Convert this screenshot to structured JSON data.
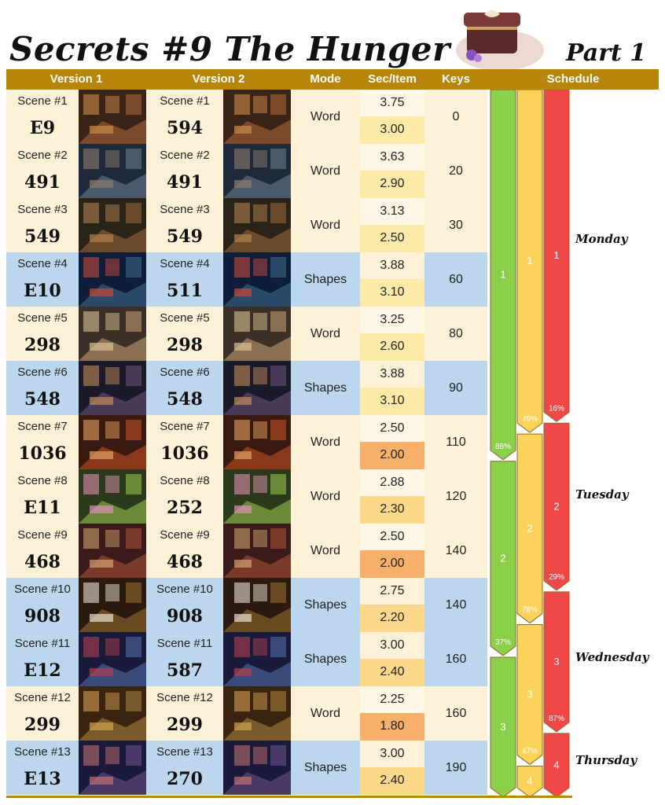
{
  "title": "Secrets #9 The Hunger",
  "part": "Part 1",
  "headers": {
    "version1": "Version  1",
    "version2": "Version  2",
    "mode": "Mode",
    "sec_item": "Sec/Item",
    "keys": "Keys",
    "schedule": "Schedule"
  },
  "colors": {
    "header": "#b8860b",
    "row_cream": "#fdf2d8",
    "row_blue": "#bcd6ee",
    "green": "#8ccf4a",
    "yellow": "#fbd35a",
    "red": "#f04848"
  },
  "rows": [
    {
      "v1_label": "Scene #1",
      "v1_value": "E9",
      "v2_label": "Scene #1",
      "v2_value": "594",
      "mode": "Word",
      "sec_top": "3.75",
      "sec_bottom": "3.00",
      "keys": "0",
      "style": "cream"
    },
    {
      "v1_label": "Scene #2",
      "v1_value": "491",
      "v2_label": "Scene #2",
      "v2_value": "491",
      "mode": "Word",
      "sec_top": "3.63",
      "sec_bottom": "2.90",
      "keys": "20",
      "style": "cream"
    },
    {
      "v1_label": "Scene #3",
      "v1_value": "549",
      "v2_label": "Scene #3",
      "v2_value": "549",
      "mode": "Word",
      "sec_top": "3.13",
      "sec_bottom": "2.50",
      "keys": "30",
      "style": "cream"
    },
    {
      "v1_label": "Scene #4",
      "v1_value": "E10",
      "v2_label": "Scene #4",
      "v2_value": "511",
      "mode": "Shapes",
      "sec_top": "3.88",
      "sec_bottom": "3.10",
      "keys": "60",
      "style": "blue"
    },
    {
      "v1_label": "Scene #5",
      "v1_value": "298",
      "v2_label": "Scene #5",
      "v2_value": "298",
      "mode": "Word",
      "sec_top": "3.25",
      "sec_bottom": "2.60",
      "keys": "80",
      "style": "cream"
    },
    {
      "v1_label": "Scene #6",
      "v1_value": "548",
      "v2_label": "Scene #6",
      "v2_value": "548",
      "mode": "Shapes",
      "sec_top": "3.88",
      "sec_bottom": "3.10",
      "keys": "90",
      "style": "blue"
    },
    {
      "v1_label": "Scene #7",
      "v1_value": "1036",
      "v2_label": "Scene #7",
      "v2_value": "1036",
      "mode": "Word",
      "sec_top": "2.50",
      "sec_bottom": "2.00",
      "keys": "110",
      "style": "cream"
    },
    {
      "v1_label": "Scene #8",
      "v1_value": "E11",
      "v2_label": "Scene #8",
      "v2_value": "252",
      "mode": "Word",
      "sec_top": "2.88",
      "sec_bottom": "2.30",
      "keys": "120",
      "style": "cream"
    },
    {
      "v1_label": "Scene #9",
      "v1_value": "468",
      "v2_label": "Scene #9",
      "v2_value": "468",
      "mode": "Word",
      "sec_top": "2.50",
      "sec_bottom": "2.00",
      "keys": "140",
      "style": "cream"
    },
    {
      "v1_label": "Scene #10",
      "v1_value": "908",
      "v2_label": "Scene #10",
      "v2_value": "908",
      "mode": "Shapes",
      "sec_top": "2.75",
      "sec_bottom": "2.20",
      "keys": "140",
      "style": "blue"
    },
    {
      "v1_label": "Scene #11",
      "v1_value": "E12",
      "v2_label": "Scene #11",
      "v2_value": "587",
      "mode": "Shapes",
      "sec_top": "3.00",
      "sec_bottom": "2.40",
      "keys": "160",
      "style": "blue"
    },
    {
      "v1_label": "Scene #12",
      "v1_value": "299",
      "v2_label": "Scene #12",
      "v2_value": "299",
      "mode": "Word",
      "sec_top": "2.25",
      "sec_bottom": "1.80",
      "keys": "160",
      "style": "cream"
    },
    {
      "v1_label": "Scene #13",
      "v1_value": "E13",
      "v2_label": "Scene #13",
      "v2_value": "270",
      "mode": "Shapes",
      "sec_top": "3.00",
      "sec_bottom": "2.40",
      "keys": "190",
      "style": "blue"
    }
  ],
  "schedule": {
    "green": [
      {
        "label": "1",
        "percent": "88%",
        "start_row": 0,
        "end_row": 6.8
      },
      {
        "label": "2",
        "percent": "37%",
        "start_row": 6.8,
        "end_row": 10.4
      },
      {
        "label": "3",
        "percent": "",
        "start_row": 10.4,
        "end_row": 13
      }
    ],
    "yellow": [
      {
        "label": "1",
        "percent": "49%",
        "start_row": 0,
        "end_row": 6.3
      },
      {
        "label": "2",
        "percent": "78%",
        "start_row": 6.3,
        "end_row": 9.8
      },
      {
        "label": "3",
        "percent": "47%",
        "start_row": 9.8,
        "end_row": 12.4
      },
      {
        "label": "4",
        "percent": "",
        "start_row": 12.4,
        "end_row": 13
      }
    ],
    "red": [
      {
        "label": "1",
        "percent": "16%",
        "start_row": 0,
        "end_row": 6.1
      },
      {
        "label": "2",
        "percent": "29%",
        "start_row": 6.1,
        "end_row": 9.2
      },
      {
        "label": "3",
        "percent": "87%",
        "start_row": 9.2,
        "end_row": 11.8
      },
      {
        "label": "4",
        "percent": "",
        "start_row": 11.8,
        "end_row": 13
      }
    ],
    "days": [
      {
        "name": "Monday",
        "row": 2.6
      },
      {
        "name": "Tuesday",
        "row": 7.3
      },
      {
        "name": "Wednesday",
        "row": 10.3
      },
      {
        "name": "Thursday",
        "row": 12.2
      }
    ]
  }
}
